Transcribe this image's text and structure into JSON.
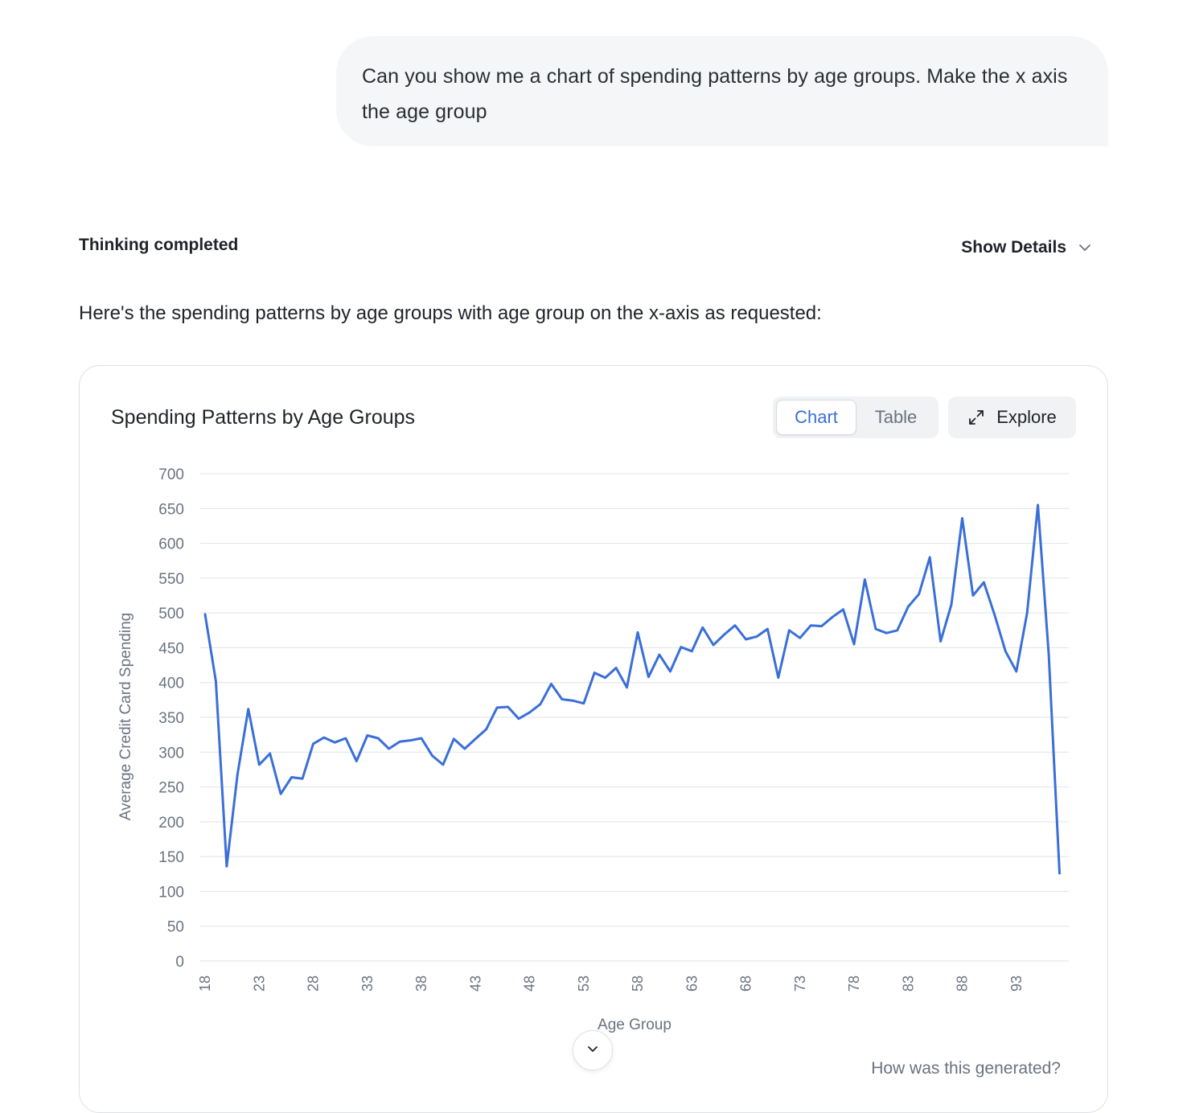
{
  "conversation": {
    "user_message": "Can you show me a chart of spending patterns by age groups. Make the x axis the age group",
    "thinking_status": "Thinking completed",
    "show_details_label": "Show Details",
    "assistant_intro": "Here's the spending patterns by age groups with age group on the x-axis as requested:"
  },
  "card": {
    "title": "Spending Patterns by Age Groups",
    "view_toggle": {
      "options": [
        "Chart",
        "Table"
      ],
      "selected": "Chart"
    },
    "explore_label": "Explore",
    "footer_link": "How was this generated?"
  },
  "icons": {
    "show_details": "chevron-down-icon",
    "explore": "expand-arrows-icon",
    "collapse": "chevron-down-icon"
  },
  "colors": {
    "series_line": "#3a6fd8",
    "active_toggle_text": "#3b6fd6",
    "grid": "#dfe2e6",
    "muted_text": "#6b7280"
  },
  "chart_data": {
    "type": "line",
    "title": "Spending Patterns by Age Groups",
    "xlabel": "Age Group",
    "ylabel": "Average Credit Card Spending",
    "ylim": [
      0,
      700
    ],
    "yticks": [
      0,
      50,
      100,
      150,
      200,
      250,
      300,
      350,
      400,
      450,
      500,
      550,
      600,
      650,
      700
    ],
    "xticks": [
      18,
      23,
      28,
      33,
      38,
      43,
      48,
      53,
      58,
      63,
      68,
      73,
      78,
      83,
      88,
      93
    ],
    "grid": true,
    "legend": "none",
    "x": [
      18,
      19,
      20,
      21,
      22,
      23,
      24,
      25,
      26,
      27,
      28,
      29,
      30,
      31,
      32,
      33,
      34,
      35,
      36,
      37,
      38,
      39,
      40,
      41,
      42,
      43,
      44,
      45,
      46,
      47,
      48,
      49,
      50,
      51,
      52,
      53,
      54,
      55,
      56,
      57,
      58,
      59,
      60,
      61,
      62,
      63,
      64,
      65,
      66,
      67,
      68,
      69,
      70,
      71,
      72,
      73,
      74,
      75,
      76,
      77,
      78,
      79,
      80,
      81,
      82,
      83,
      84,
      85,
      86,
      87,
      88,
      89,
      90,
      91,
      92,
      93,
      94,
      95,
      96,
      97
    ],
    "series": [
      {
        "values": [
          498,
          402,
          136,
          268,
          362,
          282,
          298,
          240,
          264,
          262,
          312,
          321,
          314,
          320,
          287,
          324,
          320,
          305,
          315,
          317,
          320,
          295,
          282,
          319,
          305,
          319,
          333,
          364,
          365,
          348,
          357,
          369,
          398,
          376,
          374,
          370,
          414,
          407,
          421,
          393,
          472,
          408,
          440,
          416,
          451,
          445,
          479,
          454,
          469,
          482,
          462,
          466,
          477,
          407,
          475,
          464,
          482,
          481,
          494,
          505,
          455,
          548,
          477,
          471,
          475,
          509,
          527,
          580,
          459,
          512,
          636,
          525,
          544,
          497,
          445,
          416,
          500,
          655,
          440,
          126
        ]
      }
    ]
  }
}
